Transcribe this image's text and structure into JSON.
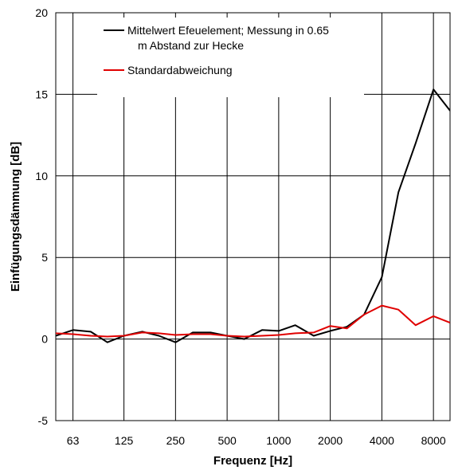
{
  "chart_data": {
    "type": "line",
    "xlabel": "Frequenz [Hz]",
    "ylabel": "Einfügungsdämmung [dB]",
    "ylim": [
      -5,
      20
    ],
    "yticks": [
      -5,
      0,
      5,
      10,
      15,
      20
    ],
    "x_scale": "log",
    "xticks": [
      63,
      125,
      250,
      500,
      1000,
      2000,
      4000,
      8000
    ],
    "xlim": [
      50,
      10000
    ],
    "grid": true,
    "legend_position": "top-left",
    "x": [
      50,
      63,
      80,
      100,
      125,
      160,
      200,
      250,
      315,
      400,
      500,
      630,
      800,
      1000,
      1250,
      1600,
      2000,
      2500,
      3150,
      4000,
      5000,
      6300,
      8000,
      10000
    ],
    "series": [
      {
        "name": "Mittelwert Efeuelement; Messung in 0.65 m Abstand zur Hecke",
        "name_lines": [
          "Mittelwert Efeuelement; Messung in 0.65",
          "m Abstand zur Hecke"
        ],
        "color": "#000000",
        "values": [
          0.2,
          0.55,
          0.45,
          -0.2,
          0.2,
          0.45,
          0.2,
          -0.2,
          0.4,
          0.4,
          0.2,
          0.0,
          0.55,
          0.5,
          0.85,
          0.2,
          0.5,
          0.75,
          1.5,
          3.8,
          9.0,
          12.0,
          15.3,
          14.0
        ]
      },
      {
        "name": "Standardabweichung",
        "name_lines": [
          "Standardabweichung"
        ],
        "color": "#e00000",
        "values": [
          0.35,
          0.3,
          0.2,
          0.15,
          0.2,
          0.4,
          0.35,
          0.25,
          0.3,
          0.3,
          0.2,
          0.15,
          0.2,
          0.25,
          0.35,
          0.4,
          0.8,
          0.65,
          1.5,
          2.05,
          1.8,
          0.85,
          1.4,
          1.0
        ]
      }
    ]
  }
}
